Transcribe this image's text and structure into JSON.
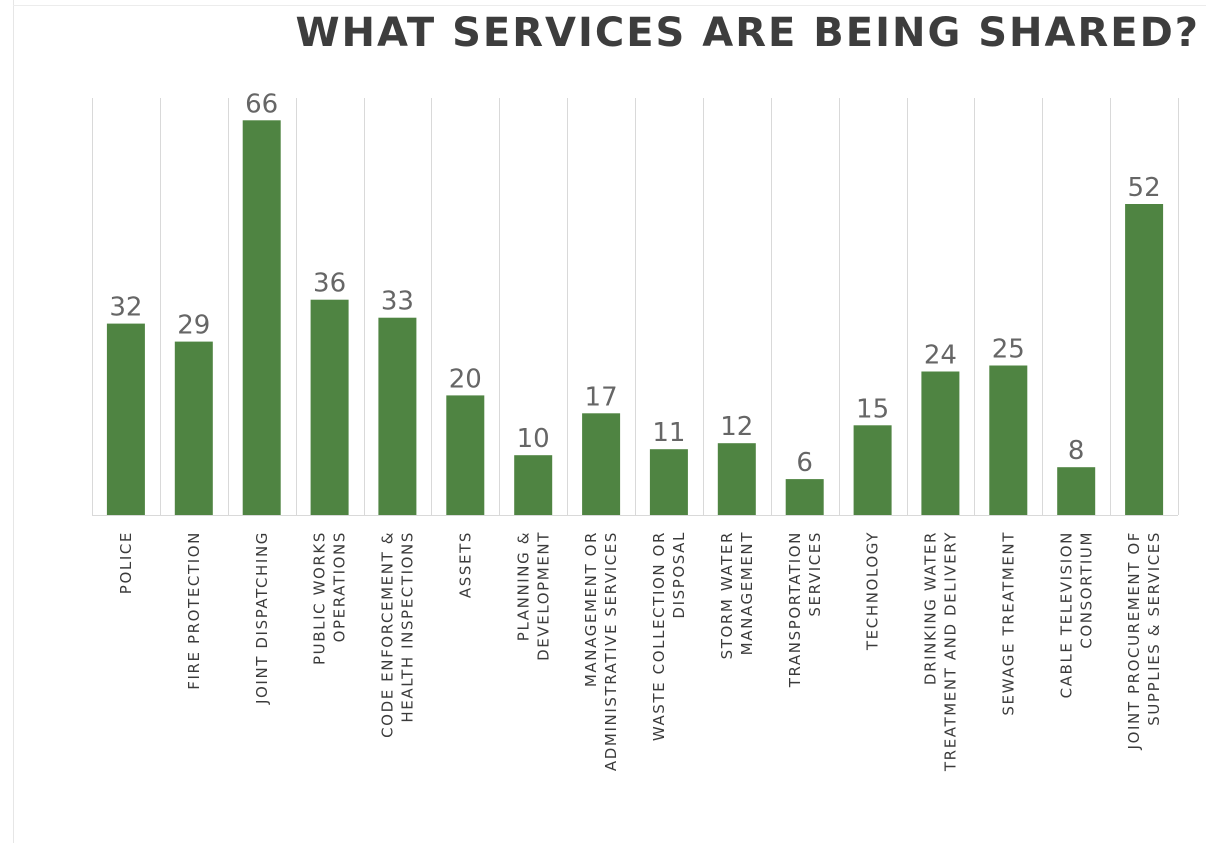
{
  "chart_data": {
    "type": "bar",
    "title": "WHAT SERVICES ARE BEING SHARED?",
    "xlabel": "",
    "ylabel": "",
    "ylim": [
      0,
      70
    ],
    "grid": "vertical",
    "categories": [
      [
        "POLICE"
      ],
      [
        "FIRE PROTECTION"
      ],
      [
        "JOINT DISPATCHING"
      ],
      [
        "PUBLIC WORKS",
        "OPERATIONS"
      ],
      [
        "CODE ENFORCEMENT &",
        "HEALTH INSPECTIONS"
      ],
      [
        "ASSETS"
      ],
      [
        "PLANNING &",
        "DEVELOPMENT"
      ],
      [
        "MANAGEMENT OR",
        "ADMINISTRATIVE SERVICES"
      ],
      [
        "WASTE COLLECTION OR",
        "DISPOSAL"
      ],
      [
        "STORM WATER",
        "MANAGEMENT"
      ],
      [
        "TRANSPORTATION",
        "SERVICES"
      ],
      [
        "TECHNOLOGY"
      ],
      [
        "DRINKING WATER",
        "TREATMENT AND DELIVERY"
      ],
      [
        "SEWAGE TREATMENT"
      ],
      [
        "CABLE TELEVISION",
        "CONSORTIUM"
      ],
      [
        "JOINT PROCUREMENT OF",
        "SUPPLIES & SERVICES"
      ]
    ],
    "values": [
      32,
      29,
      66,
      36,
      33,
      20,
      10,
      17,
      11,
      12,
      6,
      15,
      24,
      25,
      8,
      52
    ],
    "colors": {
      "bar": "#4f8442",
      "grid": "#d9d9d9",
      "baseline": "#d9d9d9",
      "value_label": "#666666",
      "category_label": "#3b3b3b"
    }
  }
}
